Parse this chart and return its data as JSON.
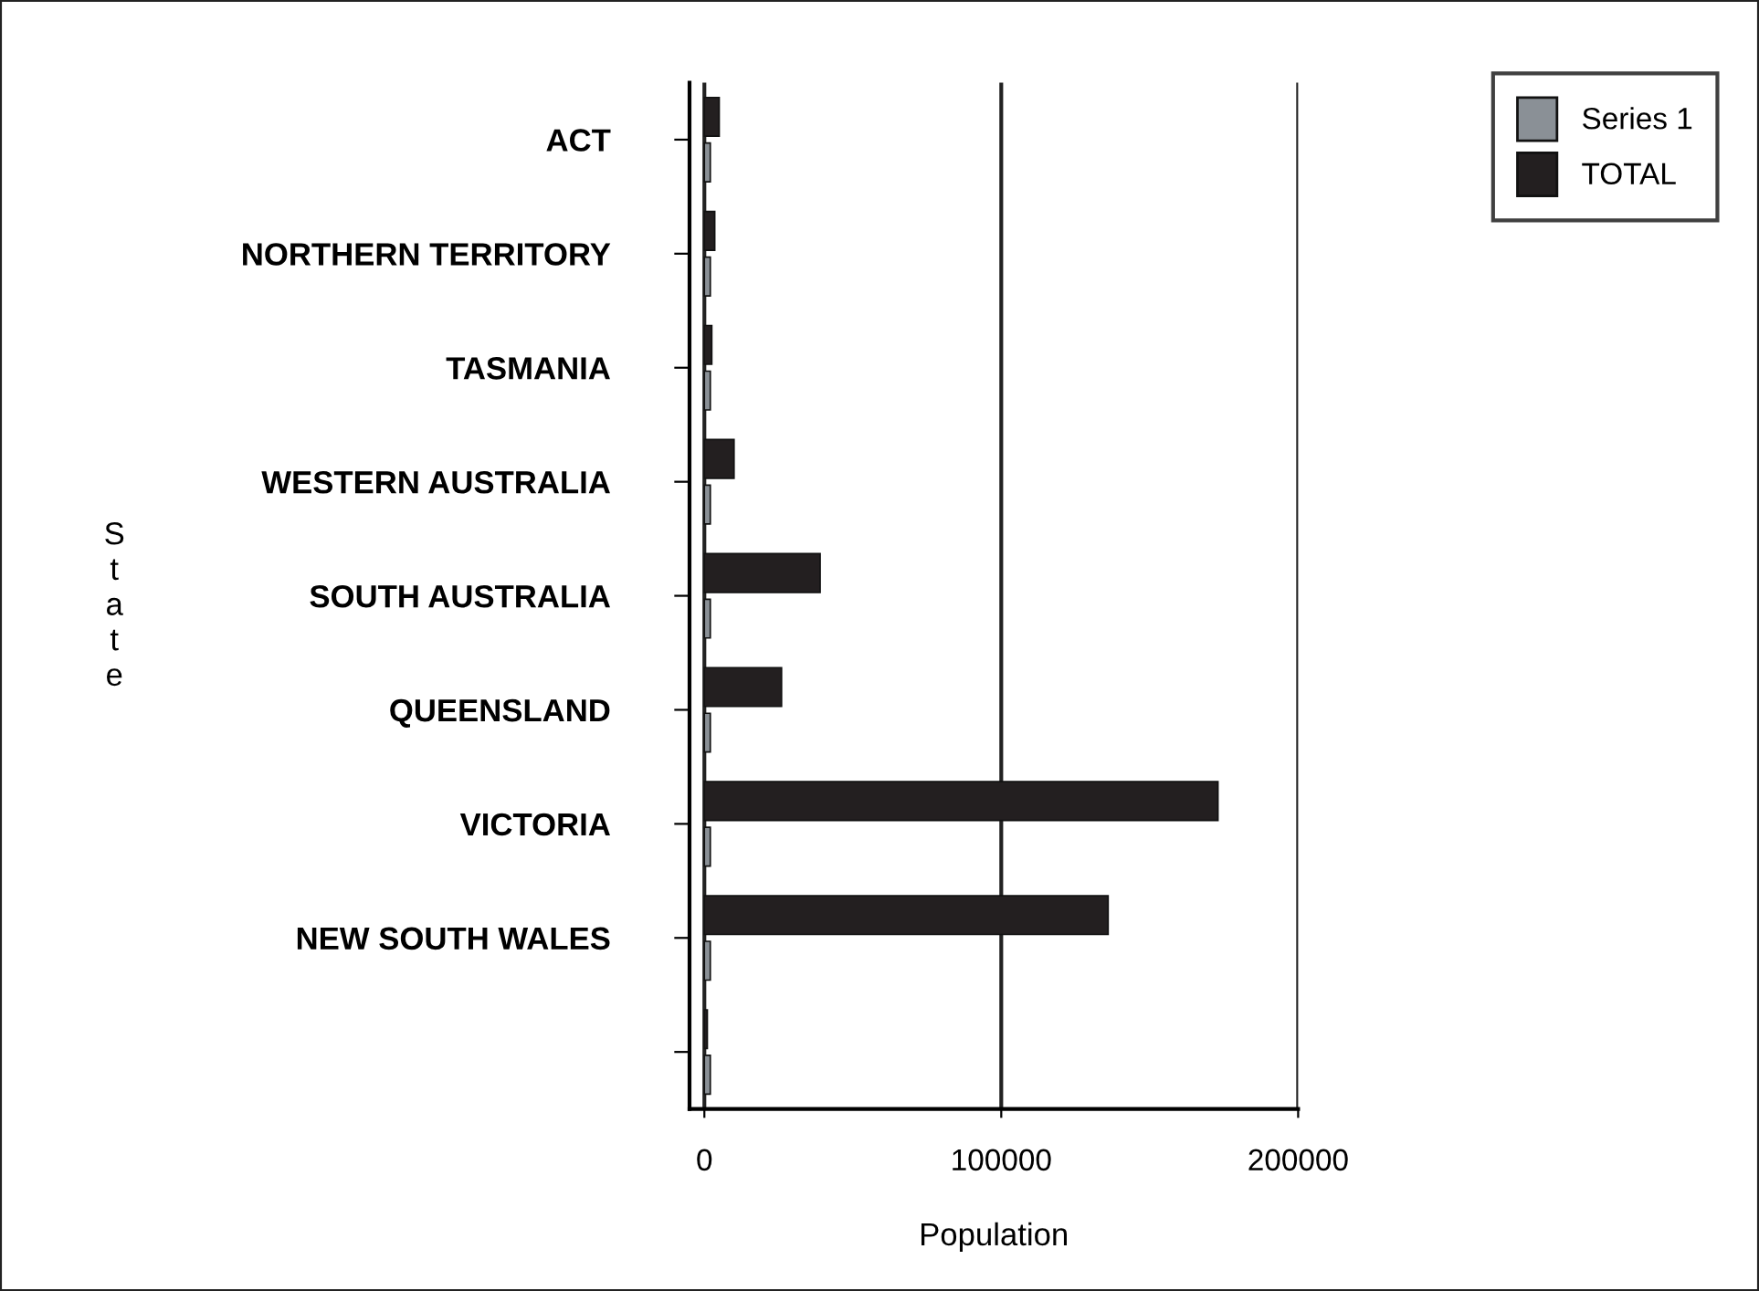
{
  "chart_data": {
    "type": "bar",
    "orientation": "horizontal",
    "xlabel": "Population",
    "ylabel": "State",
    "categories": [
      "ACT",
      "NORTHERN TERRITORY",
      "TASMANIA",
      "WESTERN AUSTRALIA",
      "SOUTH AUSTRALIA",
      "QUEENSLAND",
      "VICTORIA",
      "NEW SOUTH WALES",
      null
    ],
    "series": [
      {
        "name": "Series 1",
        "color": "#8a9096",
        "values": [
          2000,
          2000,
          2000,
          2000,
          2000,
          2000,
          2000,
          2000,
          2000
        ]
      },
      {
        "name": "TOTAL",
        "color": "#231f20",
        "values": [
          5000,
          3500,
          2500,
          10000,
          39000,
          26000,
          173000,
          136000,
          1000
        ]
      }
    ],
    "xlim": [
      -5000,
      200000
    ],
    "xticks": [
      0,
      100000,
      200000
    ],
    "grid": "x",
    "legend": "top right"
  }
}
